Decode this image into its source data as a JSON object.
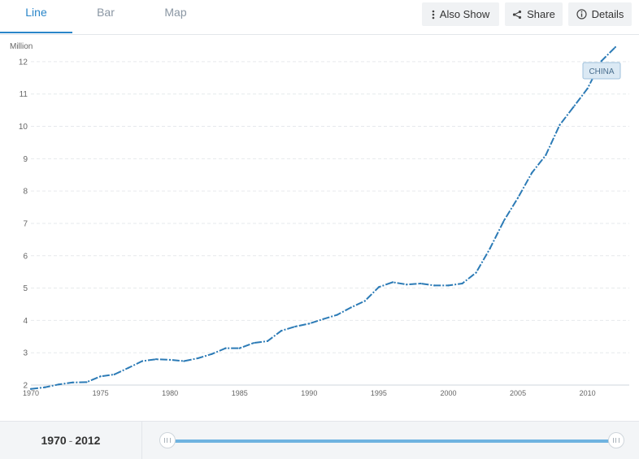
{
  "tabs": [
    {
      "label": "Line",
      "active": true
    },
    {
      "label": "Bar",
      "active": false
    },
    {
      "label": "Map",
      "active": false
    }
  ],
  "buttons": {
    "also_show": {
      "label": "Also Show",
      "icon": "vertical-dots-icon"
    },
    "share": {
      "label": "Share",
      "icon": "share-icon"
    },
    "details": {
      "label": "Details",
      "icon": "info-icon"
    }
  },
  "colors": {
    "accent": "#2a86c9",
    "series": "#2c7bb6",
    "tooltip_bg": "#dbe9f4",
    "tooltip_border": "#9fc1dc",
    "slider": "#6fb3e0"
  },
  "chart_data": {
    "type": "line",
    "unit_label": "Million",
    "ylim": [
      2,
      12.5
    ],
    "yticks": [
      2,
      3,
      4,
      5,
      6,
      7,
      8,
      9,
      10,
      11,
      12
    ],
    "xlim": [
      1970,
      2013
    ],
    "xticks": [
      1970,
      1975,
      1980,
      1985,
      1990,
      1995,
      2000,
      2005,
      2010
    ],
    "grid": true,
    "series": [
      {
        "name": "CHINA",
        "x": [
          1970,
          1971,
          1972,
          1973,
          1974,
          1975,
          1976,
          1977,
          1978,
          1979,
          1980,
          1981,
          1982,
          1983,
          1984,
          1985,
          1986,
          1987,
          1988,
          1989,
          1990,
          1991,
          1992,
          1993,
          1994,
          1995,
          1996,
          1997,
          1998,
          1999,
          2000,
          2001,
          2002,
          2003,
          2004,
          2005,
          2006,
          2007,
          2008,
          2009,
          2010,
          2011,
          2012
        ],
        "y": [
          1.88,
          1.93,
          2.02,
          2.08,
          2.09,
          2.27,
          2.33,
          2.53,
          2.74,
          2.8,
          2.78,
          2.74,
          2.83,
          2.96,
          3.14,
          3.14,
          3.3,
          3.36,
          3.68,
          3.81,
          3.9,
          4.04,
          4.17,
          4.4,
          4.6,
          5.03,
          5.18,
          5.11,
          5.14,
          5.08,
          5.08,
          5.14,
          5.48,
          6.23,
          7.09,
          7.79,
          8.56,
          9.11,
          10.04,
          10.6,
          11.17,
          12.02,
          12.45
        ]
      }
    ]
  },
  "range": {
    "start": "1970",
    "end": "2012",
    "separator": "-"
  }
}
